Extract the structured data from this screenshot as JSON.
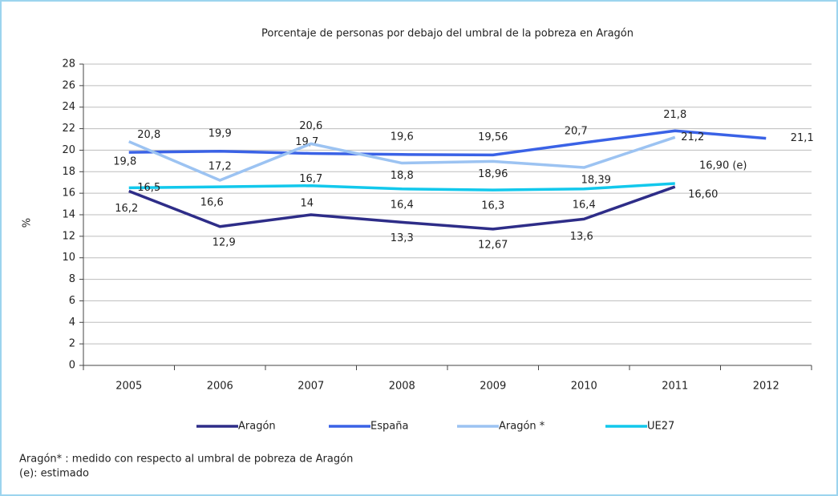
{
  "chart_data": {
    "type": "line",
    "title": "Porcentaje de personas por debajo del umbral de la pobreza en Aragón",
    "y_label": "%",
    "categories": [
      "2005",
      "2006",
      "2007",
      "2008",
      "2009",
      "2010",
      "2011",
      "2012"
    ],
    "series": [
      {
        "name": "Aragón",
        "color": "#2e2d88",
        "values": [
          16.2,
          12.9,
          14,
          13.3,
          12.67,
          13.6,
          16.6,
          null
        ],
        "value_labels": [
          "16,2",
          "12,9",
          "14",
          "13,3",
          "12,67",
          "13,6",
          "16,60",
          null
        ]
      },
      {
        "name": "España",
        "color": "#3a62e6",
        "values": [
          19.8,
          19.9,
          19.7,
          19.6,
          19.56,
          20.7,
          21.8,
          21.1
        ],
        "value_labels": [
          "19,8",
          "19,9",
          "19,7",
          "19,6",
          "19,56",
          "20,7",
          "21,8",
          "21,1"
        ]
      },
      {
        "name": "Aragón *",
        "color": "#9cc3f2",
        "values": [
          20.8,
          17.2,
          20.6,
          18.8,
          18.96,
          18.39,
          21.2,
          null
        ],
        "value_labels": [
          "20,8",
          "17,2",
          "20,6",
          "18,8",
          "18,96",
          "18,39",
          "21,2",
          null
        ]
      },
      {
        "name": "UE27",
        "color": "#12c8ec",
        "values": [
          16.5,
          16.6,
          16.7,
          16.4,
          16.3,
          16.4,
          16.9,
          null
        ],
        "value_labels": [
          "16,5",
          "16,6",
          "16,7",
          "16,4",
          "16,3",
          "16,4",
          "16,90 (e)",
          null
        ]
      }
    ],
    "ylim": [
      0,
      28
    ],
    "yticks": [
      0,
      2,
      4,
      6,
      8,
      10,
      12,
      14,
      16,
      18,
      20,
      22,
      24,
      26,
      28
    ],
    "grid": true,
    "legend": "bottom",
    "notes": [
      "Aragón* : medido con respecto al umbral de pobreza de Aragón",
      "(e): estimado"
    ]
  }
}
